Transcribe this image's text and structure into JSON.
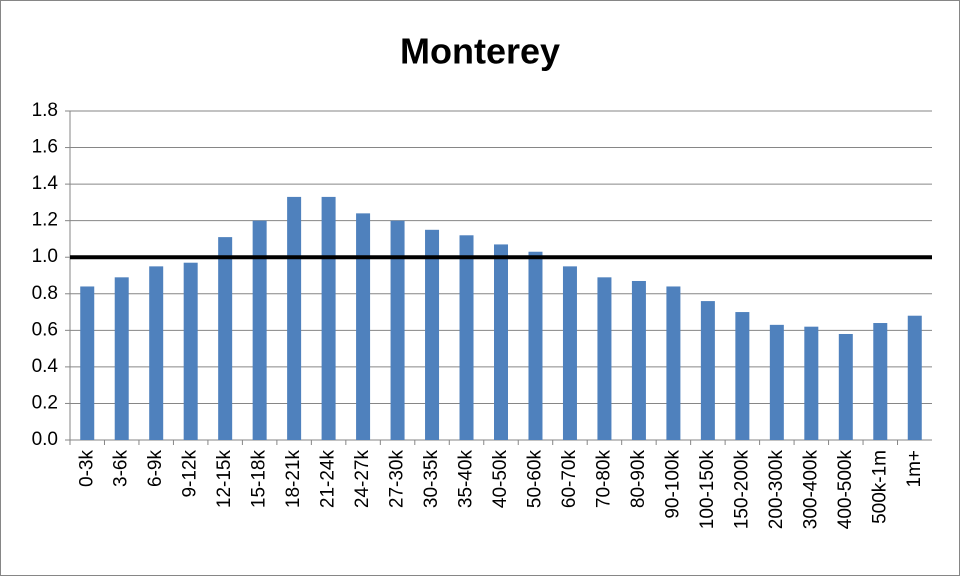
{
  "chart_data": {
    "type": "bar",
    "title": "Monterey",
    "categories": [
      "0-3k",
      "3-6k",
      "6-9k",
      "9-12k",
      "12-15k",
      "15-18k",
      "18-21k",
      "21-24k",
      "24-27k",
      "27-30k",
      "30-35k",
      "35-40k",
      "40-50k",
      "50-60k",
      "60-70k",
      "70-80k",
      "80-90k",
      "90-100k",
      "100-150k",
      "150-200k",
      "200-300k",
      "300-400k",
      "400-500k",
      "500k-1m",
      "1m+"
    ],
    "values": [
      0.84,
      0.89,
      0.95,
      0.97,
      1.11,
      1.2,
      1.33,
      1.33,
      1.24,
      1.2,
      1.15,
      1.12,
      1.07,
      1.03,
      0.95,
      0.89,
      0.87,
      0.84,
      0.76,
      0.7,
      0.63,
      0.62,
      0.58,
      0.64,
      0.68
    ],
    "color": "#4f81bd",
    "ylim": [
      0,
      1.8
    ],
    "yticks": [
      {
        "value": 0,
        "label": "0.0"
      },
      0.2,
      0.4,
      0.6,
      0.8,
      {
        "value": 1,
        "label": "1.0"
      },
      1.2,
      1.4,
      1.6,
      1.8
    ],
    "grid": true,
    "reference_line": 1
  }
}
